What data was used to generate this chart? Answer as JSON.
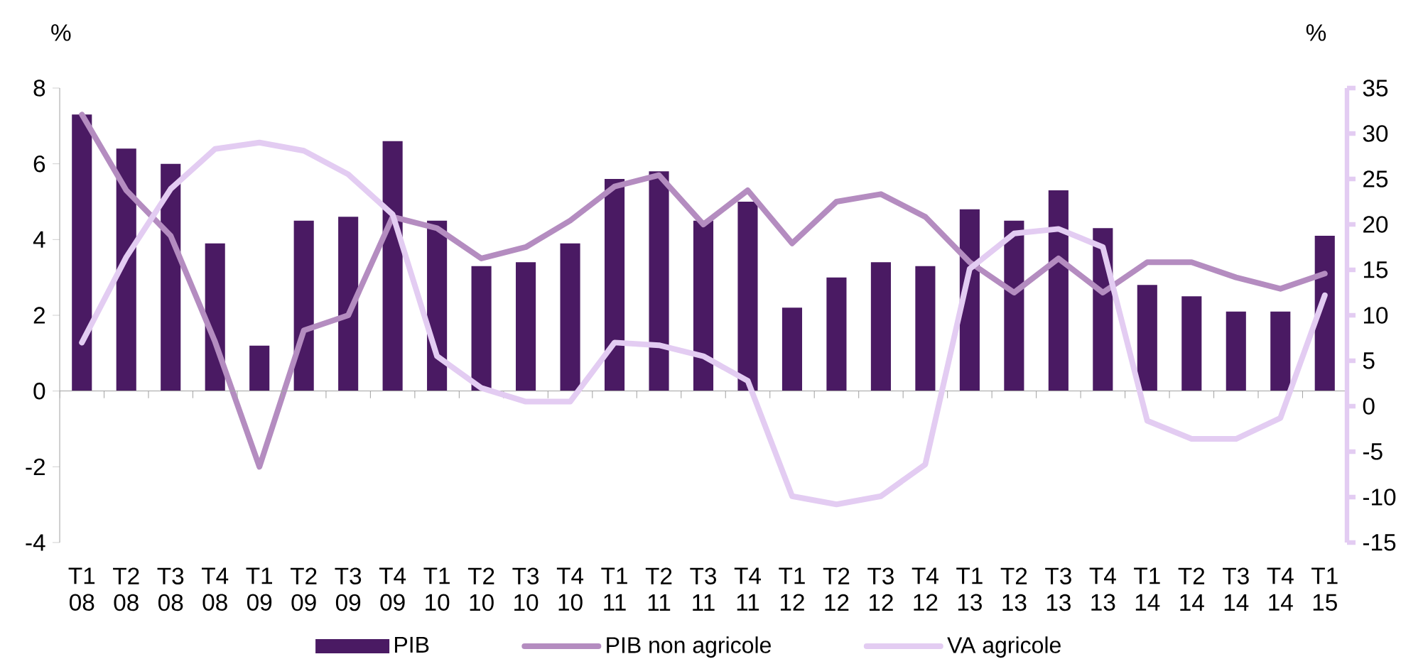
{
  "chart_data": {
    "type": "bar",
    "ylabel": "%",
    "y2label": "%",
    "categories": [
      "T1 08",
      "T2 08",
      "T3 08",
      "T4 08",
      "T1 09",
      "T2 09",
      "T3 09",
      "T4 09",
      "T1 10",
      "T2 10",
      "T3 10",
      "T4 10",
      "T1 11",
      "T2 11",
      "T3 11",
      "T4 11",
      "T1 12",
      "T2 12",
      "T3 12",
      "T4 12",
      "T1 13",
      "T2 13",
      "T3 13",
      "T4 13",
      "T1 14",
      "T2 14",
      "T3 14",
      "T4 14",
      "T1 15"
    ],
    "ylim": [
      -4,
      8
    ],
    "yticks": [
      -4,
      -2,
      0,
      2,
      4,
      6,
      8
    ],
    "y2lim": [
      -15,
      35
    ],
    "y2ticks": [
      -15,
      -10,
      -5,
      0,
      5,
      10,
      15,
      20,
      25,
      30,
      35
    ],
    "legend": "bottom",
    "series": [
      {
        "name": "PIB",
        "color": "#4a1a63",
        "values": [
          7.3,
          6.4,
          6.0,
          3.9,
          1.2,
          4.5,
          4.6,
          6.6,
          4.5,
          3.3,
          3.4,
          3.9,
          5.6,
          5.8,
          4.5,
          5.0,
          2.2,
          3.0,
          3.4,
          3.3,
          4.8,
          4.5,
          5.3,
          4.3,
          2.8,
          2.5,
          2.1,
          2.1,
          4.1
        ]
      },
      {
        "name": "PIB non agricole",
        "type": "line",
        "color": "#b48cc0",
        "values": [
          7.3,
          5.3,
          4.1,
          1.3,
          -2.0,
          1.6,
          2.0,
          4.6,
          4.3,
          3.5,
          3.8,
          4.5,
          5.4,
          5.7,
          4.4,
          5.3,
          3.9,
          5.0,
          5.2,
          4.6,
          3.4,
          2.6,
          3.5,
          2.6,
          3.4,
          3.4,
          3.0,
          2.7,
          3.1
        ]
      },
      {
        "name": "VA agricole",
        "type": "line",
        "axis": "y2",
        "color": "#e3ccf2",
        "values": [
          7.0,
          16.4,
          23.9,
          28.3,
          29.0,
          28.1,
          25.5,
          21.1,
          5.5,
          2.0,
          0.5,
          0.5,
          7.0,
          6.7,
          5.5,
          2.8,
          -9.9,
          -10.8,
          -9.9,
          -6.4,
          15.1,
          19.0,
          19.5,
          17.5,
          -1.6,
          -3.6,
          -3.6,
          -1.3,
          12.2
        ]
      }
    ]
  }
}
